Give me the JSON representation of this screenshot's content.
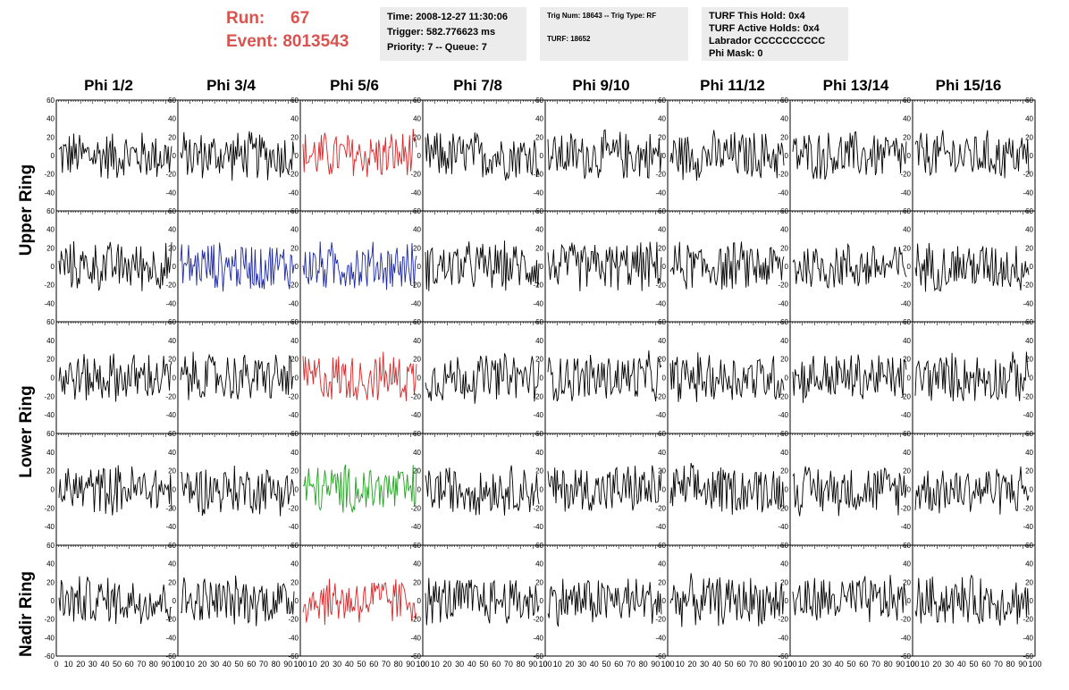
{
  "header": {
    "run_label": "Run:",
    "run_value": "67",
    "event_label": "Event:",
    "event_value": "8013543",
    "time_line": "Time: 2008-12-27 11:30:06",
    "trigger_line": "Trigger: 582.776623 ms",
    "priority_line": "Priority: 7 -- Queue: 7",
    "trig_num_line": "Trig Num: 18643 -- Trig Type: RF",
    "turf_line": "TURF: 18652",
    "turf_this_hold": "TURF This Hold: 0x4",
    "turf_active_holds": "TURF Active Holds: 0x4",
    "labrador": "Labrador CCCCCCCCCC",
    "phi_mask": "Phi Mask: 0"
  },
  "columns": [
    "Phi 1/2",
    "Phi 3/4",
    "Phi 5/6",
    "Phi 7/8",
    "Phi 9/10",
    "Phi 11/12",
    "Phi 13/14",
    "Phi 15/16"
  ],
  "row_labels": [
    "Upper Ring",
    "Lower Ring",
    "Nadir Ring"
  ],
  "colors": {
    "normal": "#000000",
    "red": "#d62728",
    "blue": "#1f2a9e",
    "green": "#22a122",
    "title_red": "#d9534f"
  },
  "chart_data": {
    "type": "line",
    "grid_rows": 5,
    "grid_cols": 8,
    "xlim": [
      0,
      100
    ],
    "ylim": [
      -60,
      60
    ],
    "x_ticks": [
      "0",
      "10",
      "20",
      "30",
      "40",
      "50",
      "60",
      "70",
      "80",
      "90",
      "100"
    ],
    "y_ticks": [
      "-40",
      "-20",
      "0",
      "20",
      "40",
      "60"
    ],
    "bottom_axis_y_ticks": [
      "-60",
      "-40",
      "-20",
      "0",
      "20",
      "40",
      "60"
    ],
    "highlighted_panels": [
      {
        "row": 0,
        "col": 2,
        "color": "red"
      },
      {
        "row": 1,
        "col": 1,
        "color": "blue"
      },
      {
        "row": 1,
        "col": 2,
        "color": "blue"
      },
      {
        "row": 2,
        "col": 2,
        "color": "red"
      },
      {
        "row": 3,
        "col": 2,
        "color": "green"
      },
      {
        "row": 4,
        "col": 2,
        "color": "red"
      }
    ],
    "waveform_amplitude_approx": 30
  }
}
